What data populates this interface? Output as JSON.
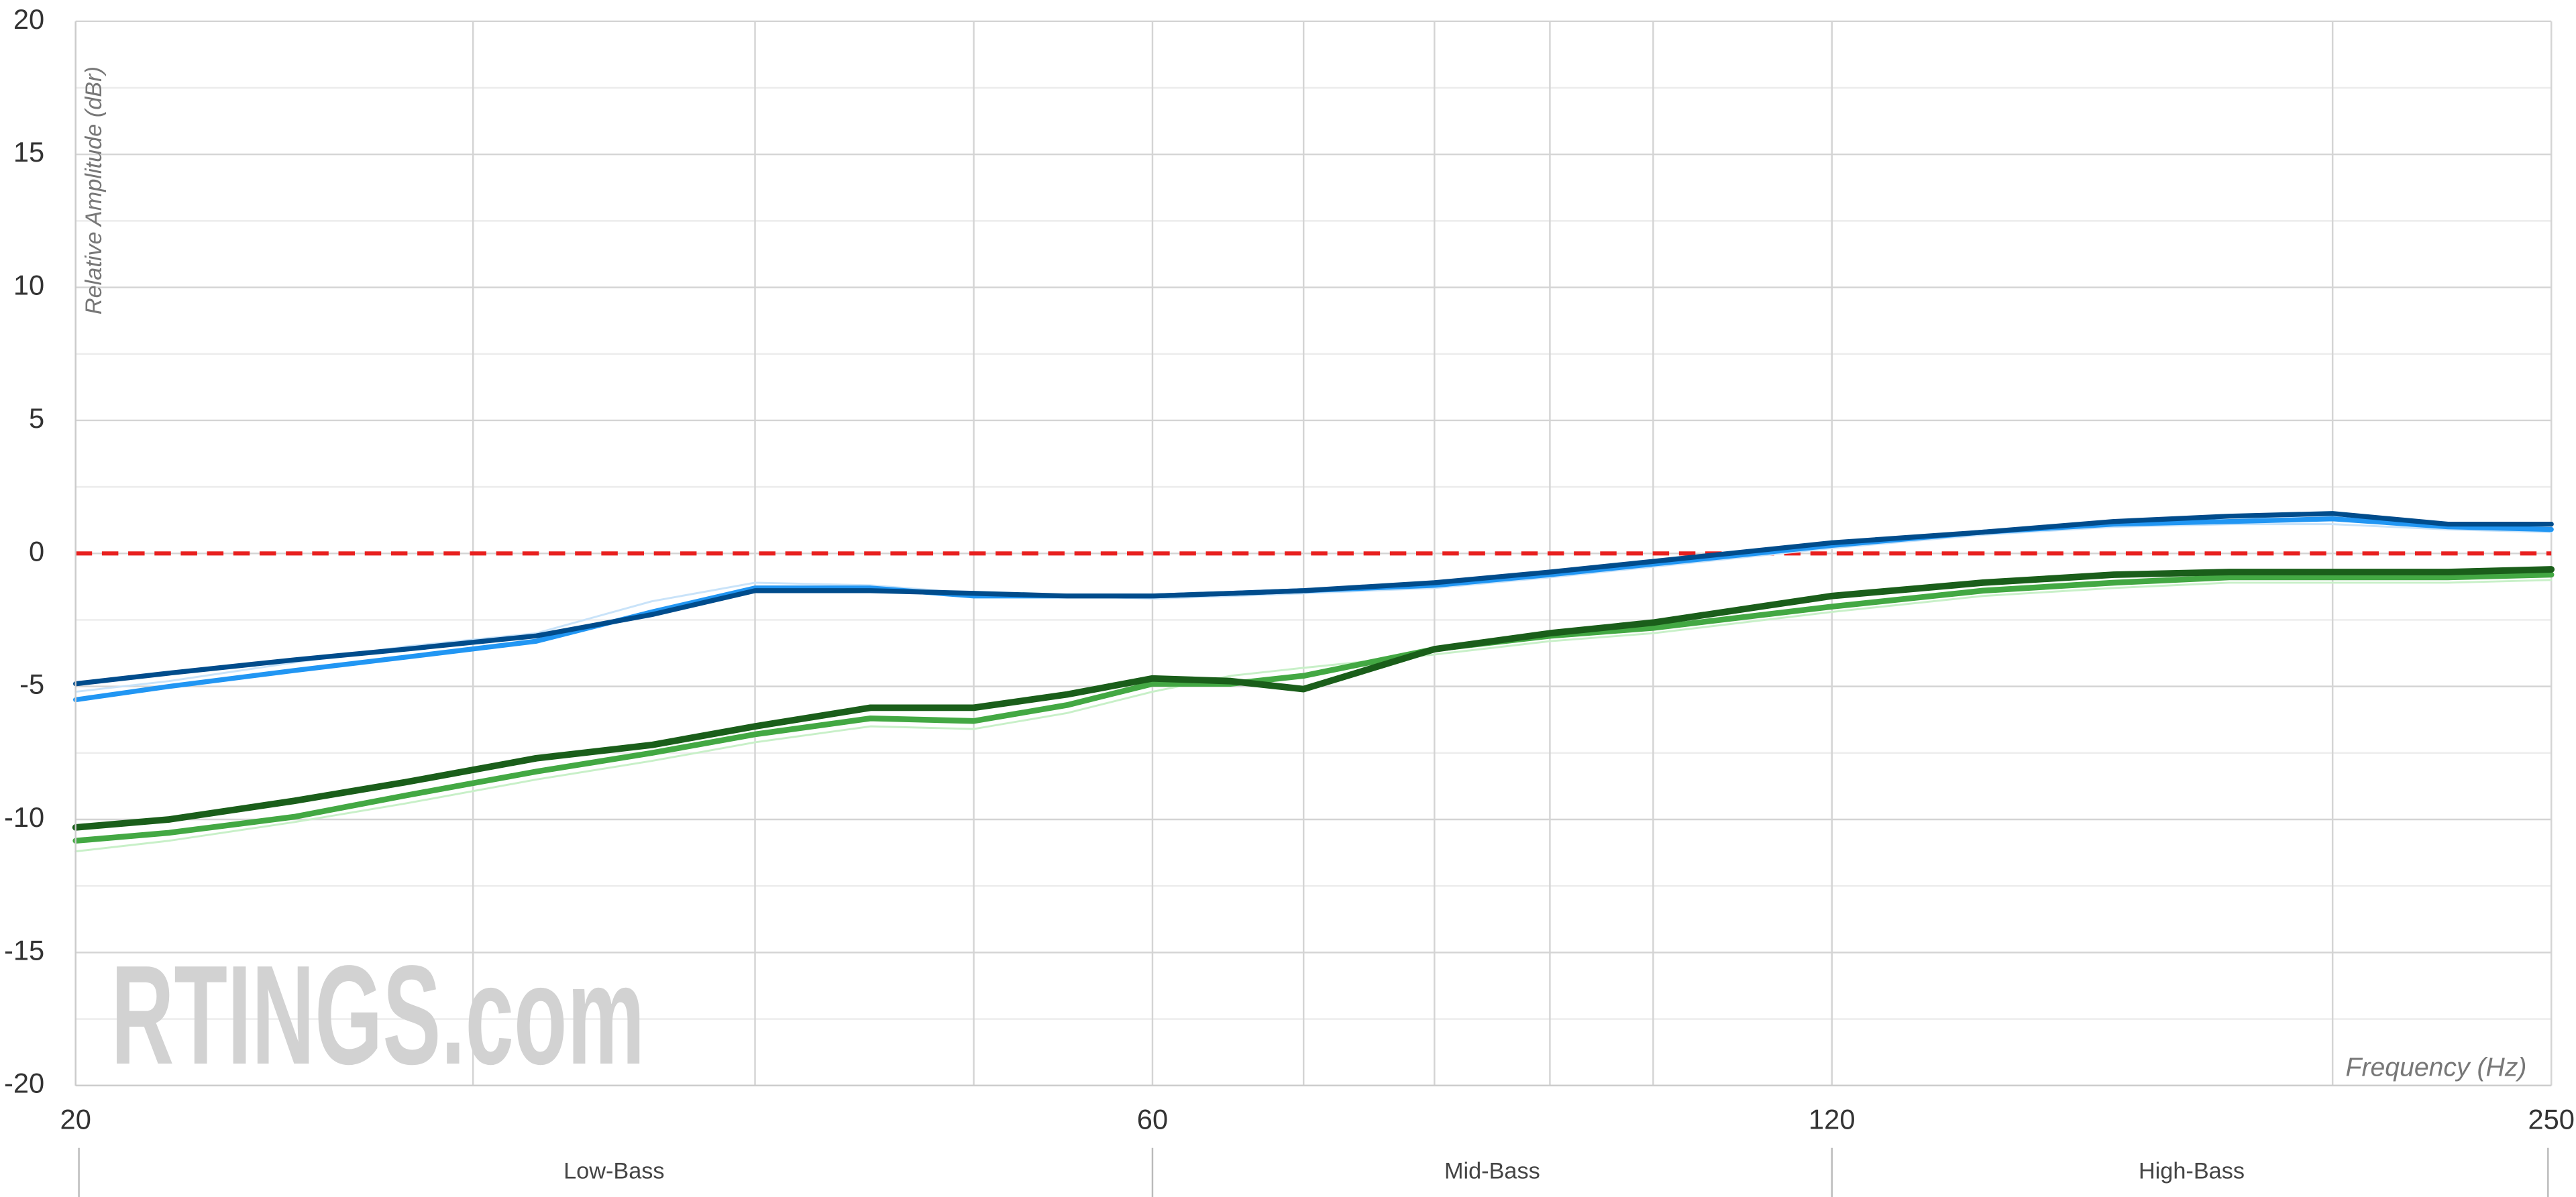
{
  "chart_data": {
    "type": "line",
    "ylabel": "Relative Amplitude (dBr)",
    "xlabel": "Frequency (Hz)",
    "watermark": "RTINGS.com",
    "xscale": "log",
    "xlim": [
      20,
      250
    ],
    "xticks": [
      20,
      60,
      120,
      250
    ],
    "xgrid_minor": [
      30,
      40,
      50,
      70,
      80,
      90,
      100,
      200
    ],
    "ylim": [
      -20,
      20
    ],
    "yticks": [
      -20,
      -15,
      -10,
      -5,
      0,
      5,
      10,
      15,
      20
    ],
    "ygrid_minor": [
      -17.5,
      -12.5,
      -7.5,
      -2.5,
      2.5,
      7.5,
      12.5,
      17.5
    ],
    "grid": true,
    "reference": 0,
    "reference_color": "#e8201f",
    "bands": [
      {
        "name": "Low-Bass",
        "from": 20,
        "to": 60
      },
      {
        "name": "Mid-Bass",
        "from": 60,
        "to": 120
      },
      {
        "name": "High-Bass",
        "from": 120,
        "to": 250
      }
    ],
    "x": [
      20,
      22,
      25,
      28,
      32,
      36,
      40,
      45,
      50,
      55,
      60,
      65,
      70,
      80,
      90,
      100,
      120,
      140,
      160,
      180,
      200,
      225,
      250
    ],
    "series": [
      {
        "color": "#c9e3f9",
        "width": 1.2,
        "values": [
          -5.2,
          -4.8,
          -4.1,
          -3.5,
          -3.0,
          -1.8,
          -1.1,
          -1.2,
          -1.5,
          -1.6,
          -1.7,
          -1.6,
          -1.5,
          -1.3,
          -0.9,
          -0.5,
          0.2,
          0.7,
          1.0,
          1.1,
          1.1,
          0.9,
          0.8
        ]
      },
      {
        "color": "#c8f0c8",
        "width": 1.2,
        "values": [
          -11.2,
          -10.8,
          -10.1,
          -9.4,
          -8.5,
          -7.8,
          -7.1,
          -6.5,
          -6.6,
          -6.0,
          -5.2,
          -4.6,
          -4.3,
          -3.8,
          -3.3,
          -3.0,
          -2.2,
          -1.6,
          -1.3,
          -1.1,
          -1.1,
          -1.1,
          -1.0
        ]
      },
      {
        "color": "#2196f3",
        "width": 3,
        "values": [
          -5.5,
          -5.0,
          -4.4,
          -3.9,
          -3.3,
          -2.2,
          -1.3,
          -1.3,
          -1.6,
          -1.6,
          -1.6,
          -1.5,
          -1.4,
          -1.2,
          -0.8,
          -0.4,
          0.3,
          0.8,
          1.1,
          1.2,
          1.3,
          1.0,
          0.9
        ]
      },
      {
        "color": "#004c8c",
        "width": 3,
        "values": [
          -4.9,
          -4.5,
          -4.0,
          -3.6,
          -3.1,
          -2.3,
          -1.4,
          -1.4,
          -1.5,
          -1.6,
          -1.6,
          -1.5,
          -1.4,
          -1.1,
          -0.7,
          -0.3,
          0.4,
          0.8,
          1.2,
          1.4,
          1.5,
          1.1,
          1.1
        ]
      },
      {
        "color": "#43a843",
        "width": 3.5,
        "values": [
          -10.8,
          -10.5,
          -9.9,
          -9.1,
          -8.2,
          -7.5,
          -6.8,
          -6.2,
          -6.3,
          -5.7,
          -4.9,
          -4.9,
          -4.6,
          -3.6,
          -3.1,
          -2.8,
          -2.0,
          -1.4,
          -1.1,
          -0.9,
          -0.9,
          -0.9,
          -0.8
        ]
      },
      {
        "color": "#1a5e1a",
        "width": 4,
        "values": [
          -10.3,
          -10.0,
          -9.3,
          -8.6,
          -7.7,
          -7.2,
          -6.5,
          -5.8,
          -5.8,
          -5.3,
          -4.7,
          -4.8,
          -5.1,
          -3.6,
          -3.0,
          -2.6,
          -1.6,
          -1.1,
          -0.8,
          -0.7,
          -0.7,
          -0.7,
          -0.6
        ]
      }
    ]
  }
}
